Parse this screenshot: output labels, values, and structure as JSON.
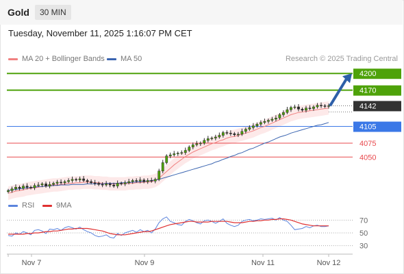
{
  "header": {
    "title": "Gold",
    "timeframe": "30 MIN"
  },
  "datetime": "Tuesday, November 11, 2025 1:16:07 PM CET",
  "legend": {
    "ma20_label": "MA 20 + Bollinger Bands",
    "ma50_label": "MA 50",
    "credit": "Research © 2025 Trading Central",
    "rsi_label": "RSI",
    "ma9_label": "9MA"
  },
  "colors": {
    "resistance": "#4ea20a",
    "support": "#e8484c",
    "pivot": "#3b78e7",
    "current": "#333333",
    "ma20": "#f08080",
    "ma50": "#3a64b0",
    "band_fill": "#fde3e3",
    "arrow": "#2d5fa8",
    "rsi": "#5b84dd",
    "ma9": "#e03030"
  },
  "chart_data": [
    {
      "type": "candlestick",
      "title": "Gold",
      "x_labels": [
        "Nov 7",
        "Nov 9",
        "Nov 11",
        "Nov 12"
      ],
      "price_range": [
        4000,
        4215
      ],
      "levels": [
        {
          "value": 4200,
          "kind": "resistance",
          "label": "4200"
        },
        {
          "value": 4170,
          "kind": "resistance",
          "label": "4170"
        },
        {
          "value": 4142,
          "kind": "current",
          "label": "4142"
        },
        {
          "value": 4105,
          "kind": "pivot",
          "label": "4105"
        },
        {
          "value": 4075,
          "kind": "support",
          "label": "4075"
        },
        {
          "value": 4050,
          "kind": "support",
          "label": "4050"
        }
      ],
      "close_series": [
        3990,
        3993,
        3996,
        3994,
        3998,
        3996,
        3995,
        3999,
        4000,
        4002,
        3998,
        4001,
        4003,
        4005,
        4004,
        4006,
        4008,
        4010,
        4009,
        4011,
        4008,
        4006,
        4004,
        4003,
        4001,
        4000,
        4002,
        4000,
        3998,
        4003,
        4002,
        4004,
        4006,
        4008,
        4007,
        4009,
        4006,
        4008,
        4007,
        4010,
        4025,
        4040,
        4052,
        4054,
        4056,
        4057,
        4058,
        4062,
        4068,
        4072,
        4074,
        4075,
        4080,
        4083,
        4084,
        4086,
        4089,
        4094,
        4093,
        4092,
        4090,
        4091,
        4096,
        4100,
        4103,
        4106,
        4109,
        4112,
        4114,
        4116,
        4118,
        4120,
        4126,
        4130,
        4135,
        4139,
        4140,
        4136,
        4134,
        4138,
        4137,
        4140,
        4143,
        4142,
        4141,
        4142
      ],
      "ma20_series": [
        3985,
        3987,
        3989,
        3990,
        3991,
        3993,
        3994,
        3995,
        3996,
        3997,
        3998,
        3999,
        4000,
        4000,
        4001,
        4002,
        4003,
        4003,
        4004,
        4004,
        4005,
        4005,
        4005,
        4004,
        4004,
        4003,
        4003,
        4002,
        4002,
        4002,
        4002,
        4002,
        4003,
        4003,
        4004,
        4004,
        4005,
        4005,
        4006,
        4008,
        4012,
        4018,
        4024,
        4030,
        4036,
        4041,
        4046,
        4051,
        4055,
        4059,
        4062,
        4065,
        4068,
        4071,
        4074,
        4076,
        4079,
        4081,
        4084,
        4086,
        4087,
        4089,
        4091,
        4093,
        4095,
        4097,
        4100,
        4103,
        4105,
        4108,
        4111,
        4114,
        4117,
        4120,
        4123,
        4126,
        4128,
        4130,
        4131,
        4132,
        4133,
        4134,
        4135,
        4136,
        4137,
        4138
      ],
      "ma50_series": [
        3990,
        3991,
        3992,
        3993,
        3994,
        3995,
        3995,
        3996,
        3997,
        3997,
        3998,
        3998,
        3999,
        3999,
        4000,
        4000,
        4000,
        4001,
        4001,
        4001,
        4001,
        4002,
        4002,
        4002,
        4002,
        4002,
        4003,
        4003,
        4003,
        4003,
        4004,
        4004,
        4004,
        4005,
        4005,
        4006,
        4006,
        4007,
        4008,
        4009,
        4010,
        4012,
        4014,
        4016,
        4018,
        4020,
        4022,
        4024,
        4026,
        4028,
        4030,
        4032,
        4034,
        4036,
        4038,
        4041,
        4043,
        4046,
        4048,
        4051,
        4053,
        4056,
        4058,
        4061,
        4064,
        4066,
        4069,
        4072,
        4075,
        4077,
        4080,
        4083,
        4086,
        4088,
        4090,
        4093,
        4095,
        4097,
        4099,
        4101,
        4103,
        4105,
        4107,
        4108,
        4110,
        4112
      ],
      "projection": {
        "from": 4142,
        "to": 4200
      }
    },
    {
      "type": "line",
      "title": "RSI",
      "y_ticks": [
        70,
        50,
        30
      ],
      "ylim": [
        20,
        80
      ],
      "series": [
        {
          "name": "RSI",
          "values": [
            46,
            45,
            50,
            48,
            52,
            50,
            47,
            54,
            55,
            53,
            49,
            56,
            55,
            57,
            54,
            58,
            60,
            58,
            56,
            59,
            55,
            52,
            50,
            46,
            44,
            45,
            47,
            43,
            42,
            49,
            46,
            50,
            52,
            54,
            51,
            55,
            52,
            54,
            50,
            56,
            66,
            72,
            75,
            68,
            66,
            63,
            62,
            68,
            71,
            69,
            66,
            64,
            69,
            70,
            68,
            65,
            68,
            72,
            65,
            62,
            60,
            62,
            68,
            70,
            71,
            69,
            70,
            72,
            71,
            72,
            73,
            70,
            74,
            70,
            68,
            62,
            55,
            56,
            57,
            60,
            58,
            61,
            62,
            60,
            60,
            61
          ]
        },
        {
          "name": "9MA",
          "values": [
            48,
            48,
            48,
            48,
            48,
            49,
            49,
            50,
            50,
            51,
            52,
            52,
            53,
            53,
            54,
            55,
            56,
            56,
            57,
            57,
            57,
            57,
            56,
            55,
            54,
            53,
            51,
            49,
            48,
            47,
            47,
            47,
            48,
            49,
            50,
            51,
            52,
            52,
            53,
            55,
            57,
            59,
            61,
            63,
            64,
            65,
            66,
            67,
            68,
            68,
            67,
            67,
            67,
            67,
            68,
            68,
            68,
            68,
            68,
            67,
            66,
            66,
            66,
            67,
            68,
            68,
            69,
            69,
            70,
            70,
            71,
            71,
            72,
            72,
            71,
            70,
            68,
            66,
            64,
            63,
            62,
            61,
            61,
            61,
            61,
            61
          ]
        }
      ]
    }
  ]
}
